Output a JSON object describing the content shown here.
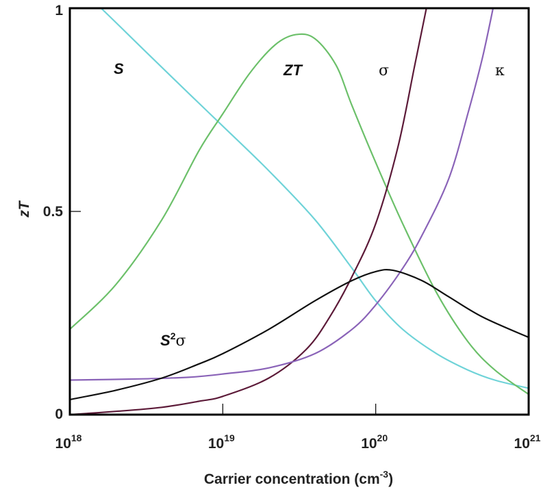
{
  "chart_data": {
    "type": "line",
    "xlabel": "Carrier concentration (cm",
    "xlabel_sup": "-3",
    "xlabel_tail": ")",
    "ylabel": "zT",
    "xscale": "log",
    "xlim": [
      1e+18,
      1e+21
    ],
    "ylim": [
      0,
      1
    ],
    "grid": false,
    "x_ticks": [
      {
        "value": 1e+18,
        "base": "10",
        "exp": "18"
      },
      {
        "value": 1e+19,
        "base": "10",
        "exp": "19"
      },
      {
        "value": 1e+20,
        "base": "10",
        "exp": "20"
      },
      {
        "value": 1e+21,
        "base": "10",
        "exp": "21"
      }
    ],
    "y_ticks": [
      {
        "value": 0,
        "label": "0"
      },
      {
        "value": 0.5,
        "label": "0.5"
      },
      {
        "value": 1,
        "label": "1"
      }
    ],
    "series": [
      {
        "label_text": "S",
        "color": "#6fd3d8",
        "points": [
          [
            1e+18,
            1.07
          ],
          [
            1.6e+18,
            1.0
          ],
          [
            3e+18,
            0.9
          ],
          [
            6e+18,
            0.79
          ],
          [
            1e+19,
            0.71
          ],
          [
            2e+19,
            0.6
          ],
          [
            4e+19,
            0.48
          ],
          [
            7e+19,
            0.36
          ],
          [
            1e+20,
            0.28
          ],
          [
            1.5e+20,
            0.21
          ],
          [
            2.5e+20,
            0.15
          ],
          [
            4e+20,
            0.11
          ],
          [
            6e+20,
            0.085
          ],
          [
            1e+21,
            0.065
          ]
        ]
      },
      {
        "label_text": "ZT",
        "color": "#6cc06a",
        "points": [
          [
            1e+18,
            0.21
          ],
          [
            2e+18,
            0.32
          ],
          [
            4e+18,
            0.48
          ],
          [
            7e+18,
            0.65
          ],
          [
            1e+19,
            0.74
          ],
          [
            1.5e+19,
            0.84
          ],
          [
            2.2e+19,
            0.91
          ],
          [
            3e+19,
            0.935
          ],
          [
            4e+19,
            0.925
          ],
          [
            5.5e+19,
            0.86
          ],
          [
            7e+19,
            0.76
          ],
          [
            1e+20,
            0.62
          ],
          [
            1.5e+20,
            0.47
          ],
          [
            2.5e+20,
            0.3
          ],
          [
            4e+20,
            0.18
          ],
          [
            6e+20,
            0.11
          ],
          [
            1e+21,
            0.05
          ]
        ]
      },
      {
        "label_text": "σ",
        "color": "#5c1a38",
        "points": [
          [
            1e+18,
            0.0
          ],
          [
            2e+18,
            0.008
          ],
          [
            4e+18,
            0.018
          ],
          [
            7e+18,
            0.033
          ],
          [
            1e+19,
            0.045
          ],
          [
            2e+19,
            0.09
          ],
          [
            3.5e+19,
            0.16
          ],
          [
            5e+19,
            0.24
          ],
          [
            7e+19,
            0.34
          ],
          [
            1e+20,
            0.47
          ],
          [
            1.4e+20,
            0.66
          ],
          [
            1.8e+20,
            0.86
          ],
          [
            2.2e+20,
            1.02
          ]
        ]
      },
      {
        "label_text": "κ",
        "color": "#8a63b8",
        "points": [
          [
            1e+18,
            0.085
          ],
          [
            3e+18,
            0.088
          ],
          [
            6e+18,
            0.092
          ],
          [
            1e+19,
            0.1
          ],
          [
            2e+19,
            0.115
          ],
          [
            4e+19,
            0.15
          ],
          [
            7e+19,
            0.21
          ],
          [
            1e+20,
            0.27
          ],
          [
            1.5e+20,
            0.36
          ],
          [
            2e+20,
            0.44
          ],
          [
            3e+20,
            0.58
          ],
          [
            4e+20,
            0.74
          ],
          [
            5e+20,
            0.88
          ],
          [
            6e+20,
            1.02
          ]
        ]
      },
      {
        "label_text": "S",
        "label_sup": "2",
        "label_greek": "σ",
        "color": "#111111",
        "points": [
          [
            1e+18,
            0.037
          ],
          [
            2e+18,
            0.06
          ],
          [
            4e+18,
            0.09
          ],
          [
            7e+18,
            0.125
          ],
          [
            1e+19,
            0.15
          ],
          [
            2e+19,
            0.21
          ],
          [
            4e+19,
            0.28
          ],
          [
            7e+19,
            0.33
          ],
          [
            1e+20,
            0.352
          ],
          [
            1.3e+20,
            0.355
          ],
          [
            2e+20,
            0.33
          ],
          [
            3e+20,
            0.29
          ],
          [
            5e+20,
            0.24
          ],
          [
            1e+21,
            0.19
          ]
        ]
      }
    ]
  }
}
